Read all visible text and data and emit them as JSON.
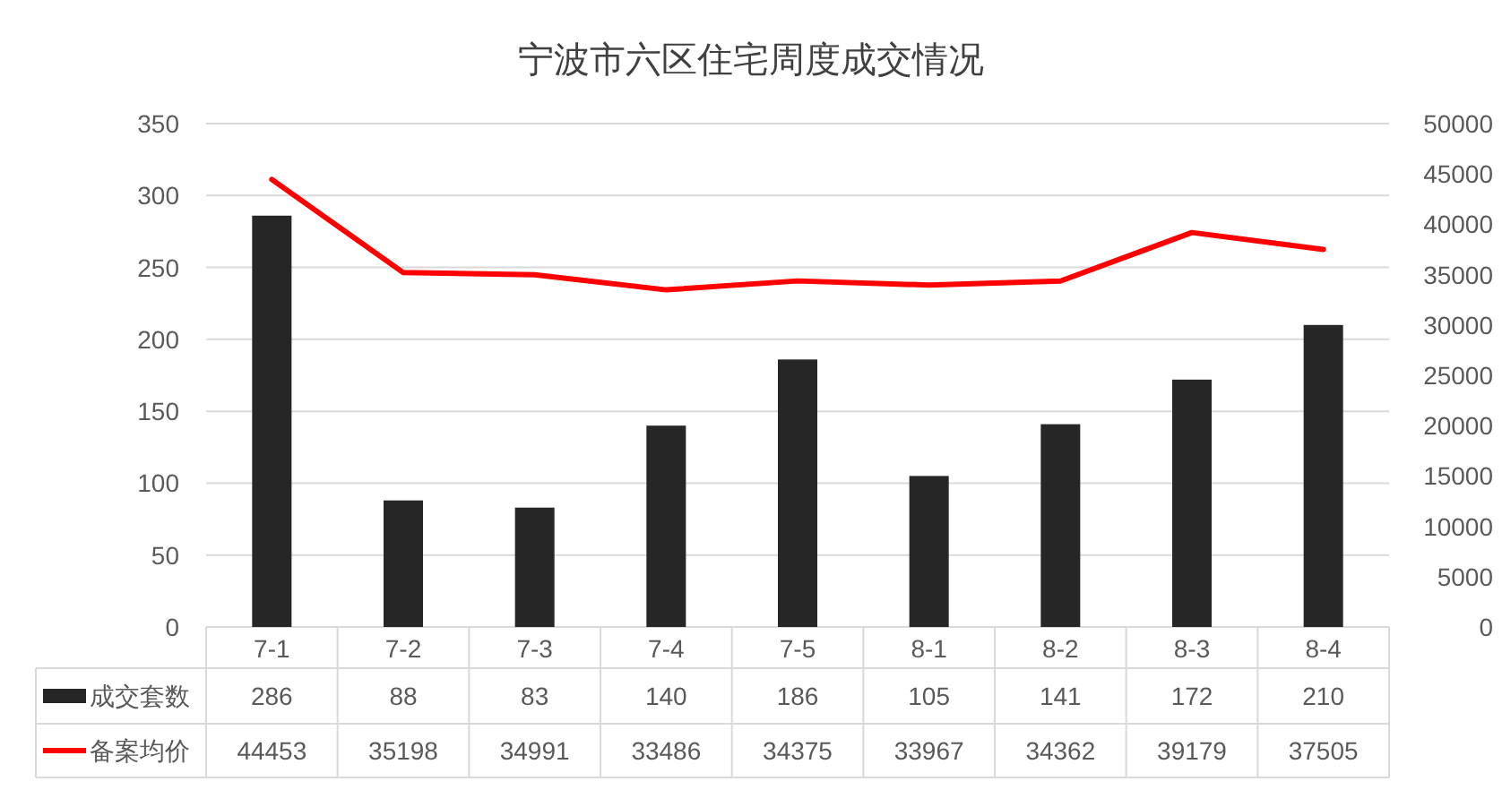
{
  "chart_data": {
    "type": "bar",
    "title": "宁波市六区住宅周度成交情况",
    "categories": [
      "7-1",
      "7-2",
      "7-3",
      "7-4",
      "7-5",
      "8-1",
      "8-2",
      "8-3",
      "8-4"
    ],
    "series": [
      {
        "name": "成交套数",
        "type": "bar",
        "color": "#262626",
        "values": [
          286,
          88,
          83,
          140,
          186,
          105,
          141,
          172,
          210
        ]
      },
      {
        "name": "备案均价",
        "type": "line",
        "axis": "y2",
        "color": "#ff0000",
        "values": [
          44453,
          35198,
          34991,
          33486,
          34375,
          33967,
          34362,
          39179,
          37505
        ]
      }
    ],
    "ylim": [
      0,
      350
    ],
    "yticks": [
      0,
      50,
      100,
      150,
      200,
      250,
      300,
      350
    ],
    "y2lim": [
      0,
      50000
    ],
    "y2ticks": [
      0,
      5000,
      10000,
      15000,
      20000,
      25000,
      30000,
      35000,
      40000,
      45000,
      50000
    ],
    "grid": "y",
    "legend": "bottom",
    "data_labels": true,
    "marker": "none",
    "line_style": "solid"
  }
}
